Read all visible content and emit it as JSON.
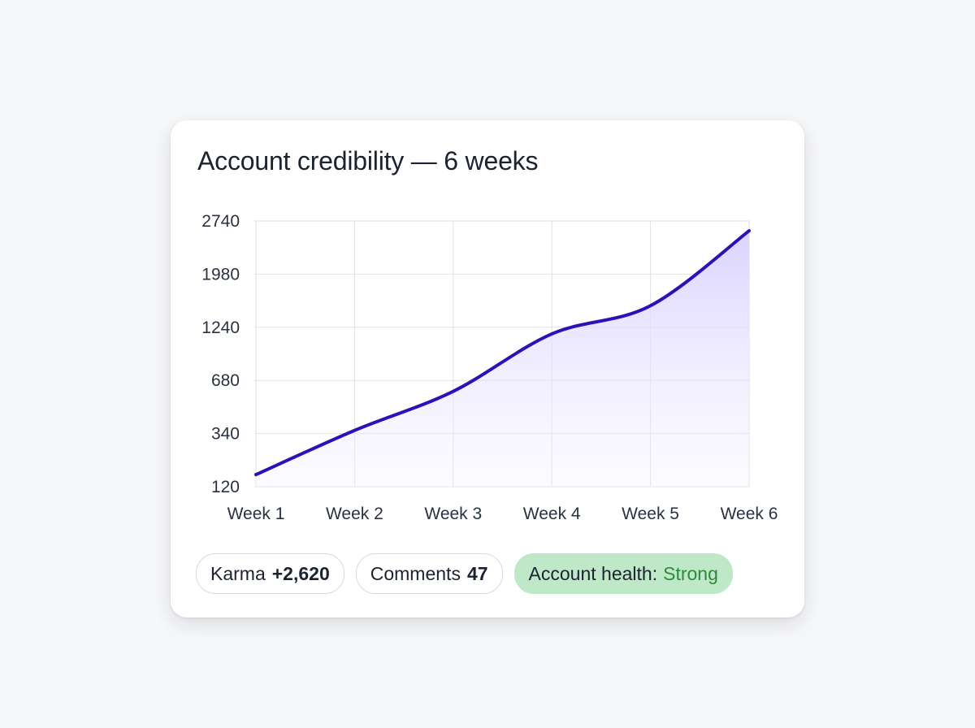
{
  "card": {
    "title": "Account credibility — 6 weeks"
  },
  "chart_data": {
    "type": "area",
    "title": "Account credibility — 6 weeks",
    "categories": [
      "Week 1",
      "Week 2",
      "Week 3",
      "Week 4",
      "Week 5",
      "Week 6"
    ],
    "y_ticks": [
      120,
      340,
      680,
      1240,
      1980,
      2740
    ],
    "y_scale": "categorical-spacing (ticks evenly spaced)",
    "series": [
      {
        "values": [
          170,
          360,
          610,
          1170,
          1540,
          2600
        ],
        "color": "#2a12b8",
        "fill": "#e6e0ff"
      }
    ],
    "grid": true,
    "legend": "none"
  },
  "stats": {
    "karma_label": "Karma",
    "karma_value": "+2,620",
    "comments_label": "Comments",
    "comments_value": "47",
    "health_label": "Account health:",
    "health_value": "Strong"
  },
  "colors": {
    "line": "#2a12b8",
    "area_fill": "#e3dcff",
    "health_bg": "#bfe8c8",
    "health_text": "#2e8a3c"
  }
}
